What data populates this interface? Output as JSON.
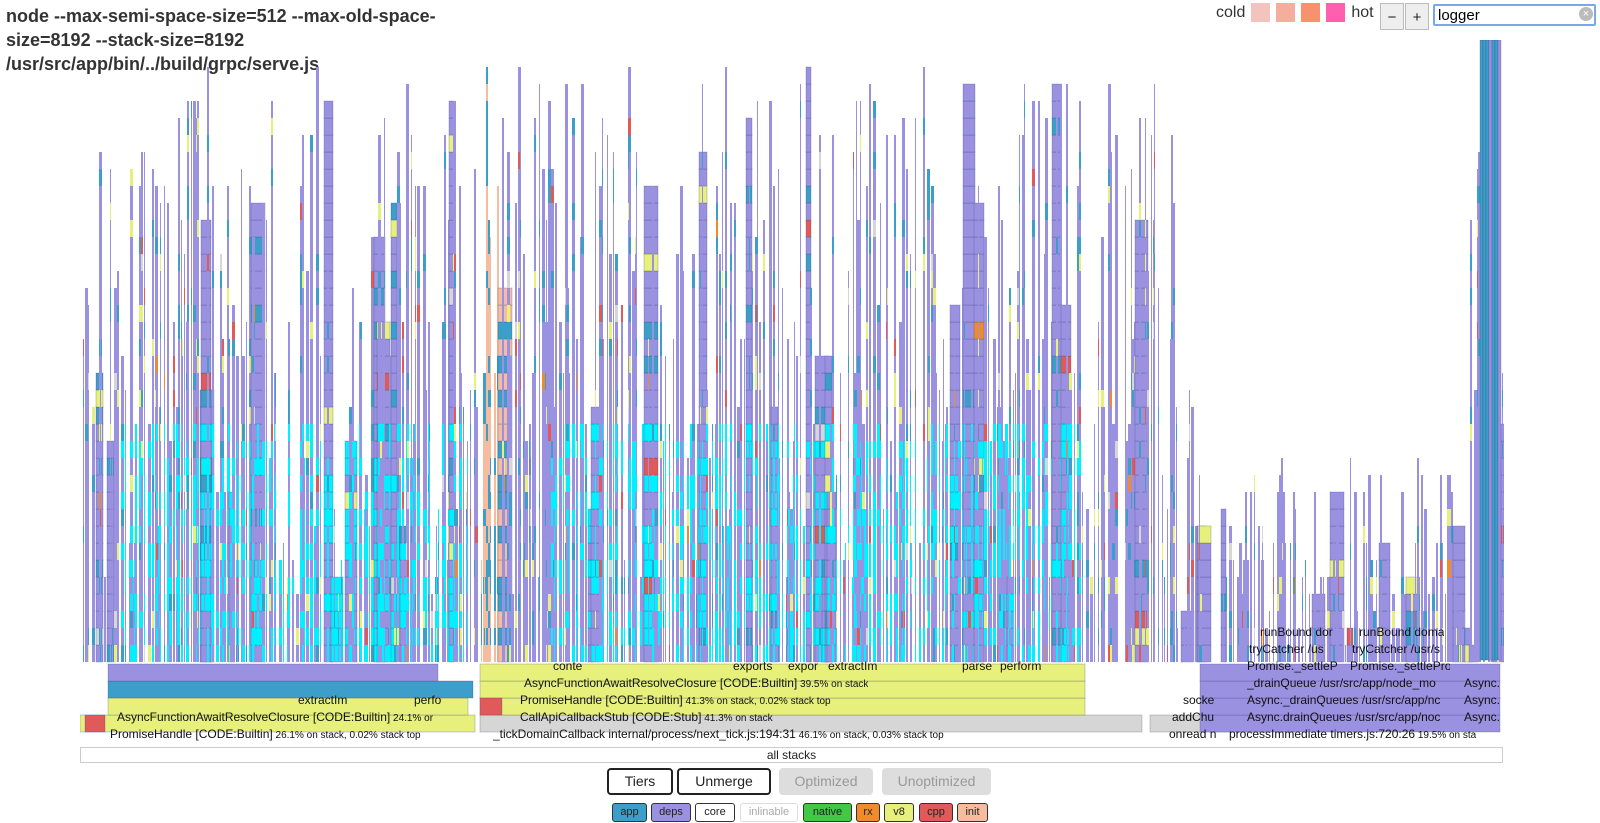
{
  "title": "node --max-semi-space-size=512 --max-old-space-size=8192 --stack-size=8192 /usr/src/app/bin/../build/grpc/serve.js",
  "heat_legend": {
    "cold_label": "cold",
    "hot_label": "hot",
    "swatches": [
      "#f3c3bd",
      "#f5ae9b",
      "#f7916e",
      "#ff5fae"
    ]
  },
  "zoom": {
    "minus": "−",
    "plus": "+"
  },
  "search": {
    "value": "logger"
  },
  "flame": {
    "root_label": "all stacks",
    "palette": {
      "app": "#3d9fc9",
      "deps": "#9a92e0",
      "core": "#d6d6d6",
      "native": "#40c846",
      "rx": "#f08a2a",
      "v8": "#e6f07a",
      "cpp": "#e05a5a",
      "init": "#f5bca0",
      "search_hit": "#00f0ff"
    },
    "frames": [
      {
        "text": "PromiseHandle [CODE:Builtin]",
        "pct": "26.1% on stack, 0.02% stack top"
      },
      {
        "text": "AsyncFunctionAwaitResolveClosure [CODE:Builtin]",
        "pct": "24.1% or"
      },
      {
        "text": "extractIm",
        "pct": ""
      },
      {
        "text": "perfo",
        "pct": ""
      },
      {
        "text": "_tickDomainCallback internal/process/next_tick.js:194:31",
        "pct": "46.1% on stack, 0.03% stack top"
      },
      {
        "text": "CallApiCallbackStub [CODE:Stub]",
        "pct": "41.3% on stack"
      },
      {
        "text": "PromiseHandle [CODE:Builtin]",
        "pct": "41.3% on stack, 0.02% stack top"
      },
      {
        "text": "AsyncFunctionAwaitResolveClosure [CODE:Builtin]",
        "pct": "39.5% on stack"
      },
      {
        "text": "conte",
        "pct": ""
      },
      {
        "text": "exports",
        "pct": ""
      },
      {
        "text": "expor",
        "pct": ""
      },
      {
        "text": "extractIm",
        "pct": ""
      },
      {
        "text": "parse",
        "pct": ""
      },
      {
        "text": "perform",
        "pct": ""
      },
      {
        "text": "onread n",
        "pct": ""
      },
      {
        "text": "addChu",
        "pct": ""
      },
      {
        "text": "socke",
        "pct": ""
      },
      {
        "text": "processImmediate timers.js:720:26",
        "pct": "19.5% on sta"
      },
      {
        "text": "Async.drainQueues /usr/src/app/noc",
        "pct": ""
      },
      {
        "text": "Async._drainQueues /usr/src/app/nc",
        "pct": ""
      },
      {
        "text": "_drainQueue /usr/src/app/node_mo",
        "pct": ""
      },
      {
        "text": "Promise._settleP",
        "pct": ""
      },
      {
        "text": "Promise._settlePro",
        "pct": ""
      },
      {
        "text": "tryCatcher /us",
        "pct": ""
      },
      {
        "text": "tryCatcher /usr/s",
        "pct": ""
      },
      {
        "text": "runBound dor",
        "pct": ""
      },
      {
        "text": "runBound doma",
        "pct": ""
      },
      {
        "text": "Async.",
        "pct": ""
      },
      {
        "text": "Async.",
        "pct": ""
      },
      {
        "text": "Async.",
        "pct": ""
      }
    ]
  },
  "controls": {
    "tiers": "Tiers",
    "unmerge": "Unmerge",
    "optimized": "Optimized",
    "unoptimized": "Unoptimized"
  },
  "legend_tags": [
    {
      "label": "app",
      "color": "#3d9fc9"
    },
    {
      "label": "deps",
      "color": "#9a92e0"
    },
    {
      "label": "core",
      "color": "#ffffff"
    },
    {
      "label": "inlinable",
      "color": "#ffffff"
    },
    {
      "label": "native",
      "color": "#40c846"
    },
    {
      "label": "rx",
      "color": "#f08a2a"
    },
    {
      "label": "v8",
      "color": "#e6f07a"
    },
    {
      "label": "cpp",
      "color": "#e05a5a"
    },
    {
      "label": "init",
      "color": "#f5bca0"
    }
  ]
}
